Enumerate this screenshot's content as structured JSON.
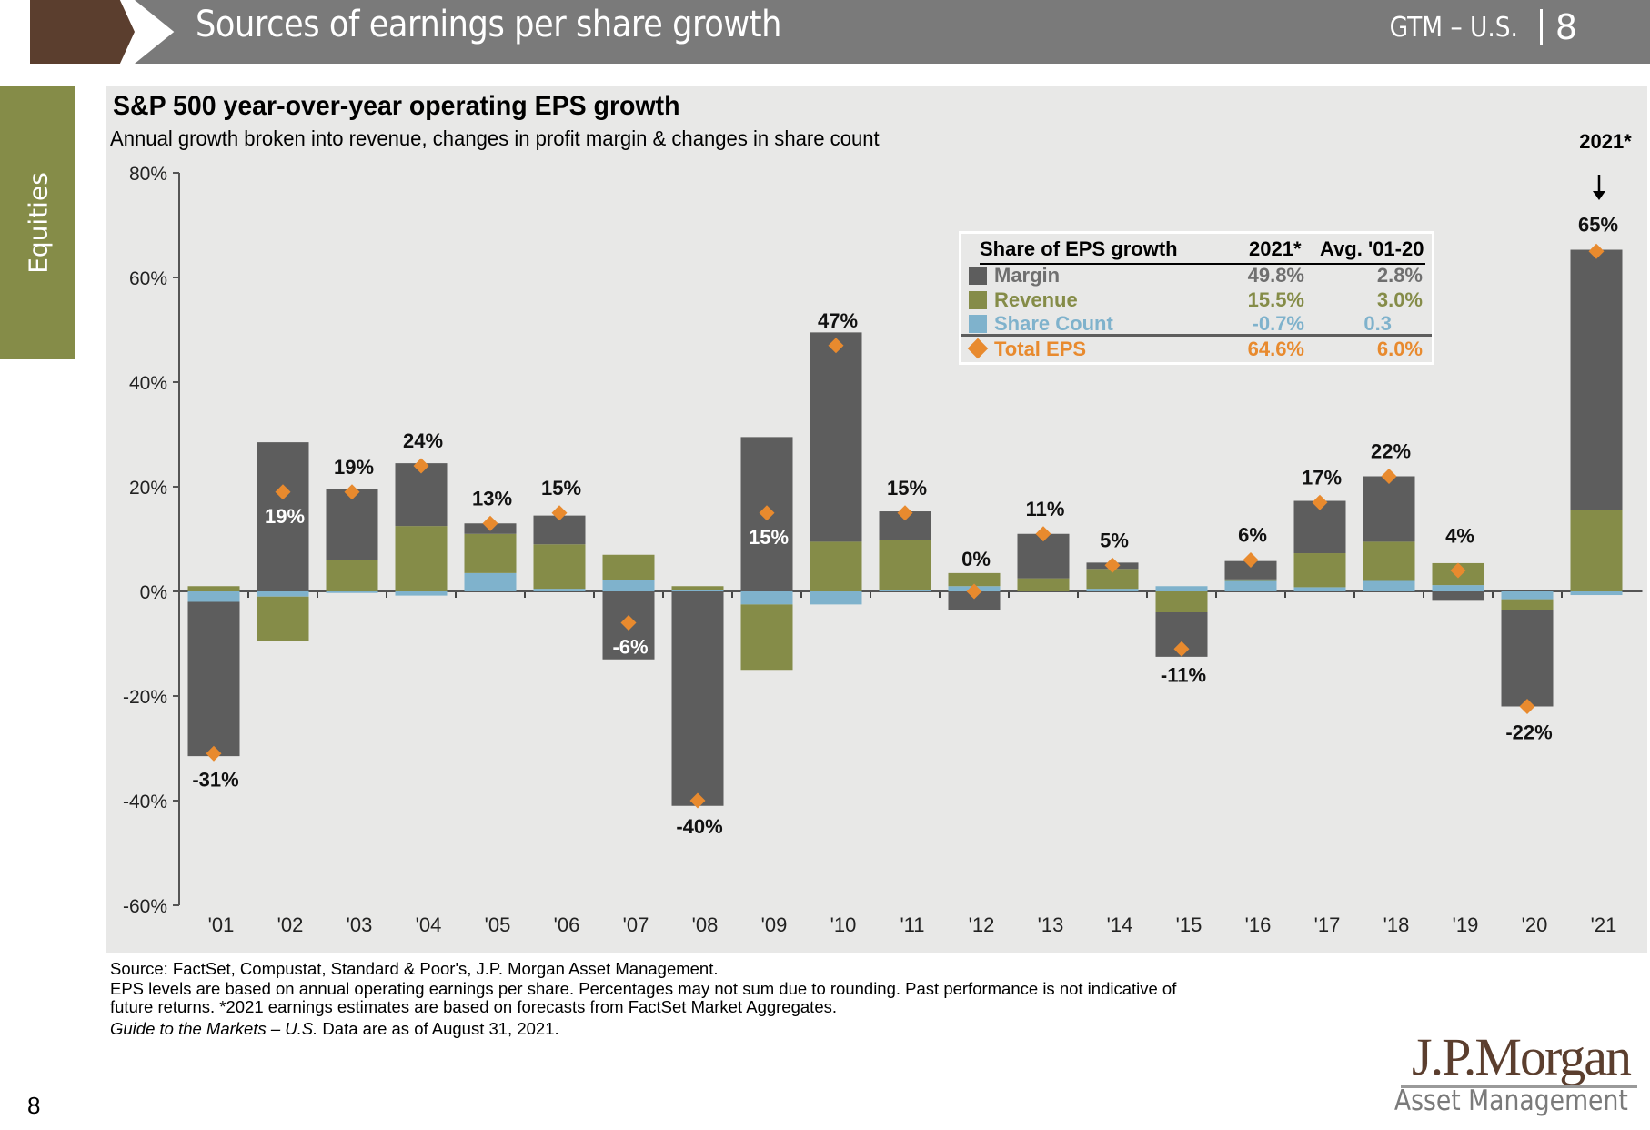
{
  "header": {
    "title": "Sources of earnings per share growth",
    "guide": "GTM – U.S.",
    "page": "8"
  },
  "side_tab": {
    "label": "Equities"
  },
  "chart": {
    "title": "S&P 500 year-over-year operating EPS growth",
    "subtitle": "Annual growth broken into revenue, changes in profit margin & changes in share count",
    "annotation_2021": "2021*",
    "annotation_arrow": "↓"
  },
  "legend": {
    "header": {
      "label": "Share of EPS growth",
      "col1": "2021*",
      "col2": "Avg. '01-20"
    },
    "rows": [
      {
        "label": "Margin",
        "v2021": "49.8%",
        "avg": "2.8%",
        "color": "#5d5d5d",
        "marker": "square"
      },
      {
        "label": "Revenue",
        "v2021": "15.5%",
        "avg": "3.0%",
        "color": "#858c48",
        "marker": "square"
      },
      {
        "label": "Share Count",
        "v2021": "-0.7%",
        "avg": "0.3",
        "color": "#7fb2cc",
        "marker": "square"
      },
      {
        "label": "Total EPS",
        "v2021": "64.6%",
        "avg": "6.0%",
        "color": "#e88a2e",
        "marker": "diamond"
      }
    ]
  },
  "chart_data": {
    "type": "bar",
    "stacked": true,
    "title": "S&P 500 year-over-year operating EPS growth",
    "subtitle": "Annual growth broken into revenue, changes in profit margin & changes in share count",
    "xlabel": "",
    "ylabel": "",
    "ylim": [
      -60,
      80
    ],
    "yticks": [
      -60,
      -40,
      -20,
      0,
      20,
      40,
      60,
      80
    ],
    "ytick_labels": [
      "-60%",
      "-40%",
      "-20%",
      "0%",
      "20%",
      "40%",
      "60%",
      "80%"
    ],
    "categories": [
      "'01",
      "'02",
      "'03",
      "'04",
      "'05",
      "'06",
      "'07",
      "'08",
      "'09",
      "'10",
      "'11",
      "'12",
      "'13",
      "'14",
      "'15",
      "'16",
      "'17",
      "'18",
      "'19",
      "'20",
      "'21"
    ],
    "series": [
      {
        "name": "Share Count",
        "color": "#7fb2cc",
        "values": [
          -2,
          -1,
          -0.3,
          -0.8,
          3.5,
          0.5,
          2.2,
          0.3,
          -2.5,
          -2.5,
          0.3,
          1,
          0,
          0.5,
          1,
          2,
          0.8,
          2,
          1.2,
          -1.5,
          -0.7
        ]
      },
      {
        "name": "Revenue",
        "color": "#858c48",
        "values": [
          1,
          -8.5,
          6,
          12.5,
          7.5,
          8.5,
          4.8,
          0.7,
          -12.5,
          9.5,
          9.5,
          2.5,
          2.5,
          3.8,
          -4,
          0.3,
          6.5,
          7.5,
          4.2,
          -2,
          15.5
        ]
      },
      {
        "name": "Margin",
        "color": "#5d5d5d",
        "values": [
          -29.5,
          28.5,
          13.5,
          12,
          2,
          5.5,
          -13,
          -41,
          29.5,
          40,
          5.5,
          -3.5,
          8.5,
          1.2,
          -8.5,
          3.5,
          10,
          12.5,
          -1.8,
          -18.5,
          49.8
        ]
      },
      {
        "name": "Total EPS",
        "color": "#e88a2e",
        "marker": "diamond",
        "values": [
          -31,
          19,
          19,
          24,
          13,
          15,
          -6,
          -40,
          15,
          47,
          15,
          0,
          11,
          5,
          -11,
          6,
          17,
          22,
          4,
          -22,
          65
        ]
      }
    ],
    "data_labels": [
      "-31%",
      "19%",
      "19%",
      "24%",
      "13%",
      "15%",
      "-6%",
      "-40%",
      "15%",
      "47%",
      "15%",
      "0%",
      "11%",
      "5%",
      "-11%",
      "6%",
      "17%",
      "22%",
      "4%",
      "-22%",
      "65%"
    ],
    "legend": {
      "placement": "top-right",
      "entries": [
        "Margin",
        "Revenue",
        "Share Count",
        "Total EPS"
      ]
    },
    "grid": false
  },
  "footnotes": {
    "source": "Source: FactSet, Compustat, Standard & Poor's, J.P. Morgan Asset Management.",
    "note1": "EPS levels are based on annual operating earnings per share. Percentages may not sum due to rounding. Past performance is not indicative of",
    "note2": "future returns. *2021 earnings estimates are based on forecasts from FactSet Market Aggregates.",
    "guide_italic": "Guide to the Markets – U.S.",
    "date": " Data are as of August 31, 2021."
  },
  "logo": {
    "brand": "J.P.Morgan",
    "division": "Asset Management"
  },
  "page_number": "8"
}
